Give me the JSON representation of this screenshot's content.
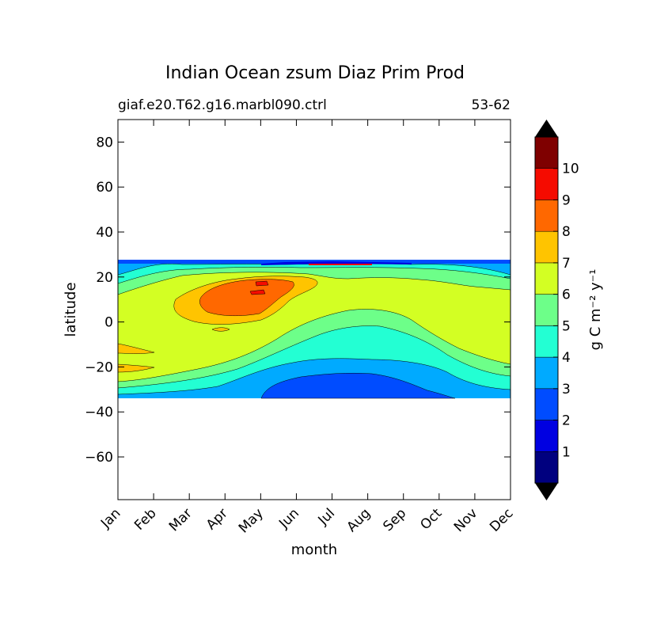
{
  "chart_data": {
    "type": "contourf",
    "title": "Indian Ocean zsum Diaz Prim Prod",
    "subtitle_left": "giaf.e20.T62.g16.marbl090.ctrl",
    "subtitle_right": "53-62",
    "xlabel": "month",
    "ylabel": "latitude",
    "x_categories": [
      "Jan",
      "Feb",
      "Mar",
      "Apr",
      "May",
      "Jun",
      "Jul",
      "Aug",
      "Sep",
      "Oct",
      "Nov",
      "Dec"
    ],
    "y_ticks": [
      80,
      60,
      40,
      20,
      0,
      -20,
      -40,
      -60
    ],
    "ylim": [
      -79,
      90
    ],
    "data_lat_range": [
      -34,
      27
    ],
    "colorbar": {
      "label": "g C m⁻² y⁻¹",
      "levels": [
        0,
        1,
        2,
        3,
        4,
        5,
        6,
        7,
        8,
        9,
        10,
        11
      ],
      "tick_labels": [
        "1",
        "2",
        "3",
        "4",
        "5",
        "6",
        "7",
        "8",
        "9",
        "10"
      ],
      "colors": [
        "#00007f",
        "#0000e1",
        "#004cff",
        "#00aaff",
        "#23ffd3",
        "#6dff89",
        "#d3ff23",
        "#ffc400",
        "#ff6800",
        "#f50b00",
        "#7f0000"
      ],
      "extend_low_color": "#000000",
      "extend_high_color": "#000000"
    },
    "contour_regions": [
      {
        "level": "3-4",
        "color": "#00aaff",
        "band": "southern band near 30S all year; northern edge near 25N"
      },
      {
        "level": "2-3",
        "color": "#004cff",
        "band": "south of 23S from Apr to Oct; thin strip at 27N"
      },
      {
        "level": "4-5",
        "color": "#23ffd3",
        "band": "southern hemisphere 5S-25S; 20N-25N"
      },
      {
        "level": "5-6",
        "color": "#6dff89",
        "band": "surrounds productive core"
      },
      {
        "level": "6-7",
        "color": "#d3ff23",
        "band": "main basin 15S-15N"
      },
      {
        "level": "7-8",
        "color": "#ffc400",
        "band": "Mar-Jun core 0-20N; Jan-Feb at 10S and 20S"
      },
      {
        "level": "8-9",
        "color": "#ff6800",
        "band": "Apr-May core 5N-17N"
      },
      {
        "level": "9-10",
        "color": "#f50b00",
        "band": "small patches near May 12N-17N"
      }
    ]
  }
}
